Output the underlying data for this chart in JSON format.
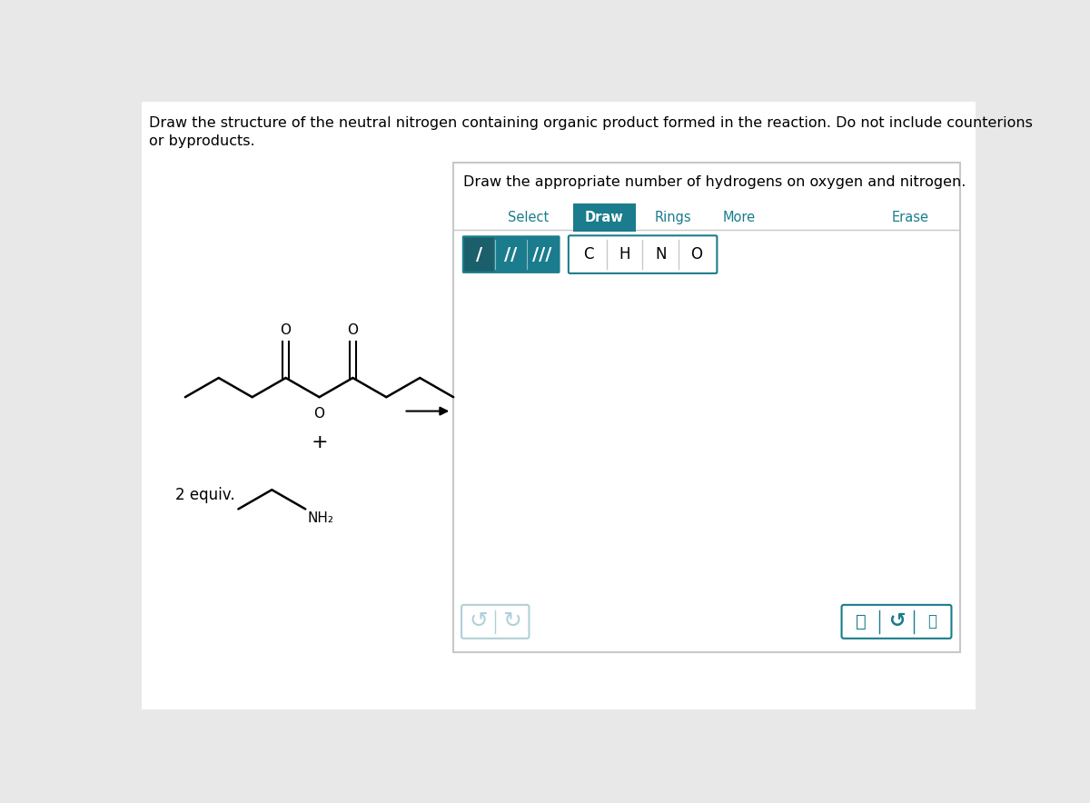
{
  "bg_color": "#e8e8e8",
  "page_bg": "#ffffff",
  "teal": "#1a7c8c",
  "teal_light": "#b0d0d8",
  "text_color": "#000000",
  "border_gray": "#c8c8c8",
  "panel_title": "Draw the appropriate number of hydrogens on oxygen and nitrogen.",
  "toolbar_items": [
    "Select",
    "Draw",
    "Rings",
    "More",
    "Erase"
  ],
  "active_tab": "Draw",
  "bond_labels": [
    "/",
    "//",
    "///"
  ],
  "atom_labels": [
    "C",
    "H",
    "N",
    "O"
  ],
  "equiv_label": "2 equiv.",
  "nh2_label": "NH₂",
  "header_line1": "Draw the structure of the neutral nitrogen containing organic product formed in the reaction. Do not include counterions",
  "header_line2": "or byproducts."
}
